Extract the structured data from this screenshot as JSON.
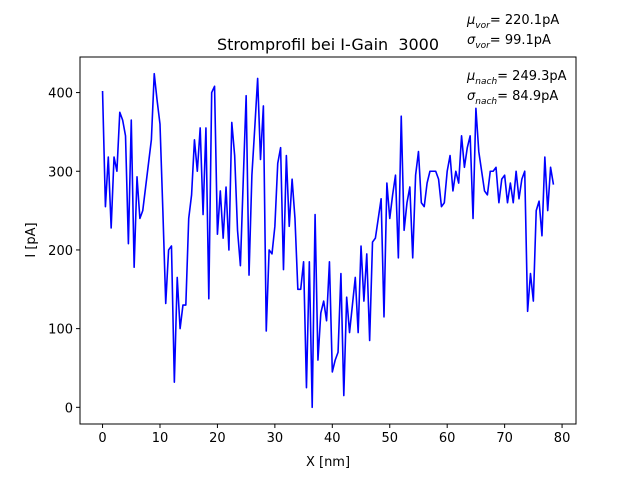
{
  "chart_data": {
    "type": "line",
    "title": "Stromprofil bei I-Gain  3000",
    "xlabel": "X [nm]",
    "ylabel": "I [pA]",
    "annotations": [
      {
        "symbol": "μ",
        "subscript": "vor",
        "text": "= 220.1pA"
      },
      {
        "symbol": "σ",
        "subscript": "vor",
        "text": "= 99.1pA"
      },
      {
        "symbol": "μ",
        "subscript": "nach",
        "text": "= 249.3pA"
      },
      {
        "symbol": "σ",
        "subscript": "nach",
        "text": "= 84.9pA"
      }
    ],
    "color": "#0000ff",
    "x": [
      0,
      0.5,
      1,
      1.5,
      2,
      2.5,
      3,
      3.5,
      4,
      4.5,
      5,
      5.5,
      6,
      6.5,
      7,
      7.5,
      8,
      8.5,
      9,
      9.5,
      10,
      10.5,
      11,
      11.5,
      12,
      12.5,
      13,
      13.5,
      14,
      14.5,
      15,
      15.5,
      16,
      16.5,
      17,
      17.5,
      18,
      18.5,
      19,
      19.5,
      20,
      20.5,
      21,
      21.5,
      22,
      22.5,
      23,
      23.5,
      24,
      24.5,
      25,
      25.5,
      26,
      26.5,
      27,
      27.5,
      28,
      28.5,
      29,
      29.5,
      30,
      30.5,
      31,
      31.5,
      32,
      32.5,
      33,
      33.5,
      34,
      34.5,
      35,
      35.5,
      36,
      36.5,
      37,
      37.5,
      38,
      38.5,
      39,
      39.5,
      40,
      40.5,
      41,
      41.5,
      42,
      42.5,
      43,
      43.5,
      44,
      44.5,
      45,
      45.5,
      46,
      46.5,
      47,
      47.5,
      48,
      48.5,
      49,
      49.5,
      50,
      50.5,
      51,
      51.5,
      52,
      52.5,
      53,
      53.5,
      54,
      54.5,
      55,
      55.5,
      56,
      56.5,
      57,
      57.5,
      58,
      58.5,
      59,
      59.5,
      60,
      60.5,
      61,
      61.5,
      62,
      62.5,
      63,
      63.5,
      64,
      64.5,
      65,
      65.5,
      66,
      66.5,
      67,
      67.5,
      68,
      68.5,
      69,
      69.5,
      70,
      70.5,
      71,
      71.5,
      72,
      72.5,
      73,
      73.5,
      74,
      74.5,
      75,
      75.5,
      76,
      76.5,
      77,
      77.5,
      78,
      78.5
    ],
    "values": [
      402,
      255,
      318,
      228,
      318,
      300,
      375,
      365,
      345,
      208,
      365,
      178,
      293,
      240,
      250,
      280,
      310,
      340,
      424,
      390,
      360,
      250,
      132,
      200,
      205,
      32,
      165,
      100,
      130,
      130,
      240,
      270,
      340,
      300,
      355,
      245,
      355,
      138,
      400,
      408,
      220,
      275,
      215,
      280,
      200,
      362,
      320,
      225,
      180,
      290,
      396,
      168,
      295,
      355,
      418,
      315,
      383,
      97,
      200,
      195,
      230,
      310,
      330,
      175,
      320,
      230,
      290,
      240,
      150,
      150,
      185,
      25,
      185,
      0,
      245,
      60,
      120,
      135,
      110,
      185,
      45,
      60,
      70,
      170,
      15,
      140,
      95,
      130,
      165,
      95,
      205,
      135,
      195,
      85,
      210,
      215,
      240,
      265,
      115,
      285,
      240,
      270,
      295,
      190,
      370,
      225,
      260,
      280,
      190,
      295,
      325,
      260,
      255,
      285,
      300,
      300,
      300,
      290,
      255,
      260,
      300,
      320,
      275,
      300,
      285,
      345,
      305,
      330,
      345,
      240,
      380,
      325,
      300,
      275,
      270,
      300,
      300,
      305,
      260,
      290,
      295,
      260,
      285,
      260,
      300,
      265,
      290,
      300,
      122,
      170,
      135,
      250,
      262,
      218,
      318,
      250,
      305,
      283
    ],
    "xlim": [
      -3.925,
      82.425
    ],
    "ylim": [
      -21.2,
      445.2
    ],
    "xticks": [
      0,
      10,
      20,
      30,
      40,
      50,
      60,
      70,
      80
    ],
    "yticks": [
      0,
      100,
      200,
      300,
      400
    ]
  }
}
